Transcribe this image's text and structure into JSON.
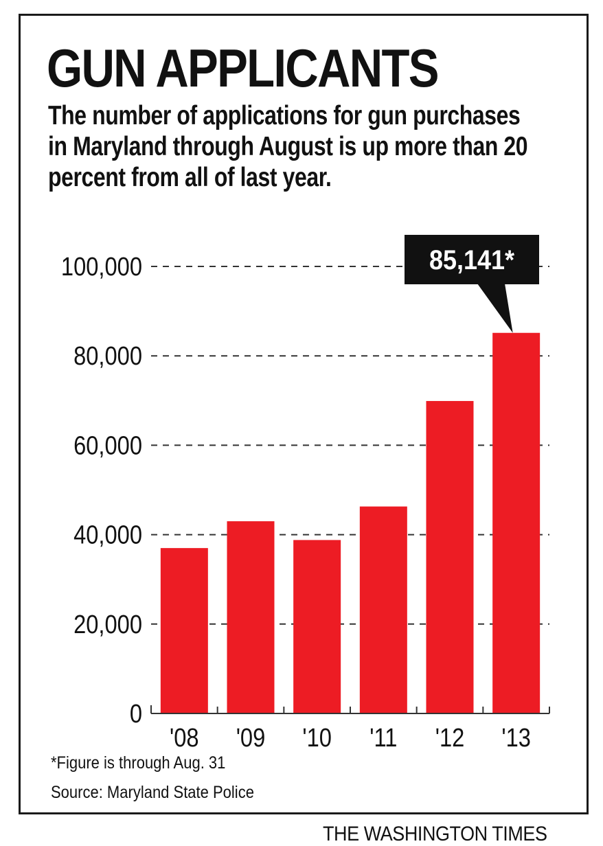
{
  "header": {
    "title": "GUN APPLICANTS",
    "subtitle": "The number of applications for gun purchases in Maryland through August is up more than 20 percent from all of last year."
  },
  "chart_data": {
    "type": "bar",
    "title": "GUN APPLICANTS",
    "categories": [
      "'08",
      "'09",
      "'10",
      "'11",
      "'12",
      "'13"
    ],
    "values": [
      37000,
      43000,
      38800,
      46300,
      69900,
      85141
    ],
    "ylim": [
      0,
      100000
    ],
    "yticks": [
      0,
      20000,
      40000,
      60000,
      80000,
      100000
    ],
    "ytick_labels": [
      "0",
      "20,000",
      "40,000",
      "60,000",
      "80,000",
      "100,000"
    ],
    "grid": "dashed horizontal",
    "bar_color": "#ed1c24",
    "callout": {
      "category": "'13",
      "label": "85,141*"
    }
  },
  "footer": {
    "note": "*Figure is through Aug. 31",
    "source": "Source: Maryland State Police",
    "brand": "THE WASHINGTON TIMES"
  }
}
